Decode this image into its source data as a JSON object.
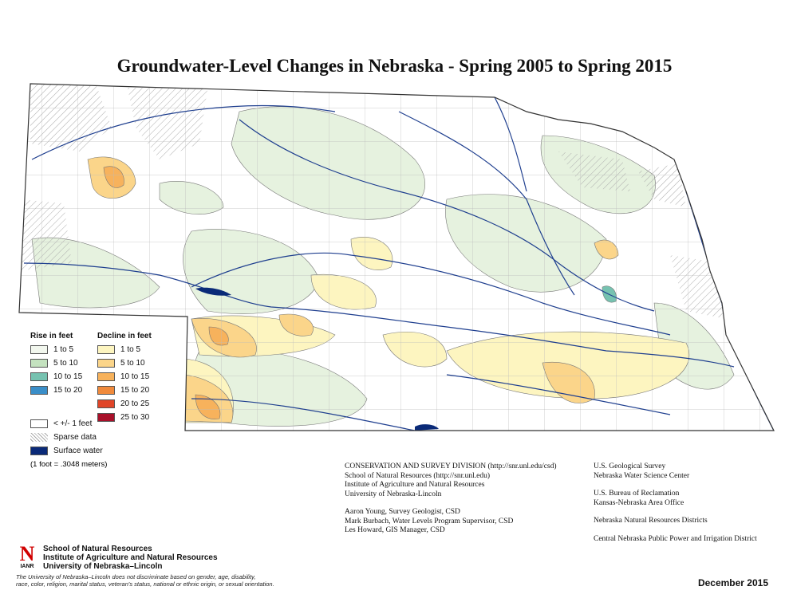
{
  "title": "Groundwater-Level Changes in Nebraska - Spring 2005 to Spring 2015",
  "legend": {
    "rise": {
      "heading": "Rise in feet",
      "items": [
        {
          "label": "1 to 5",
          "color": "#f2f7ee"
        },
        {
          "label": "5 to 10",
          "color": "#c4e2bf"
        },
        {
          "label": "10 to 15",
          "color": "#76c2b0"
        },
        {
          "label": "15 to 20",
          "color": "#3a8ec8"
        }
      ]
    },
    "decline": {
      "heading": "Decline in feet",
      "items": [
        {
          "label": "1 to 5",
          "color": "#fdf5c0"
        },
        {
          "label": "5 to 10",
          "color": "#fbd58a"
        },
        {
          "label": "10 to 15",
          "color": "#f7b25c"
        },
        {
          "label": "15 to 20",
          "color": "#f08a3c"
        },
        {
          "label": "20 to 25",
          "color": "#e04528"
        },
        {
          "label": "25 to 30",
          "color": "#a8102a"
        }
      ]
    },
    "other": [
      {
        "label": "< +/- 1 feet",
        "color": "#ffffff"
      },
      {
        "label": "Sparse data",
        "color": "hatch"
      },
      {
        "label": "Surface water",
        "color": "#0a2a78"
      }
    ],
    "note": "(1 foot = .3048 meters)"
  },
  "credits": {
    "column1": [
      [
        "CONSERVATION AND SURVEY DIVISION (http://snr.unl.edu/csd)",
        "School of Natural Resources (http://snr.unl.edu)",
        "Institute of Agriculture and Natural Resources",
        "University of Nebraska-Lincoln"
      ],
      [
        "Aaron Young, Survey Geologist, CSD",
        "Mark Burbach, Water Levels Program Supervisor, CSD",
        "Les Howard, GIS Manager, CSD"
      ]
    ],
    "column2": [
      [
        "U.S. Geological Survey",
        "Nebraska Water Science Center"
      ],
      [
        "U.S. Bureau of Reclamation",
        "Kansas-Nebraska Area Office"
      ],
      [
        "Nebraska Natural Resources Districts"
      ],
      [
        "Central Nebraska Public Power and Irrigation District"
      ]
    ]
  },
  "logo": {
    "mark": "N",
    "acronym": "IANR",
    "lines": [
      "School of Natural Resources",
      "Institute of Agriculture and Natural Resources",
      "University of Nebraska–Lincoln"
    ]
  },
  "disclaimer": [
    "The University of Nebraska–Lincoln does not discriminate based on gender, age, disability,",
    "race, color, religion, marital status, veteran's status, national or ethnic origin, or sexual orientation."
  ],
  "date": "December 2015"
}
